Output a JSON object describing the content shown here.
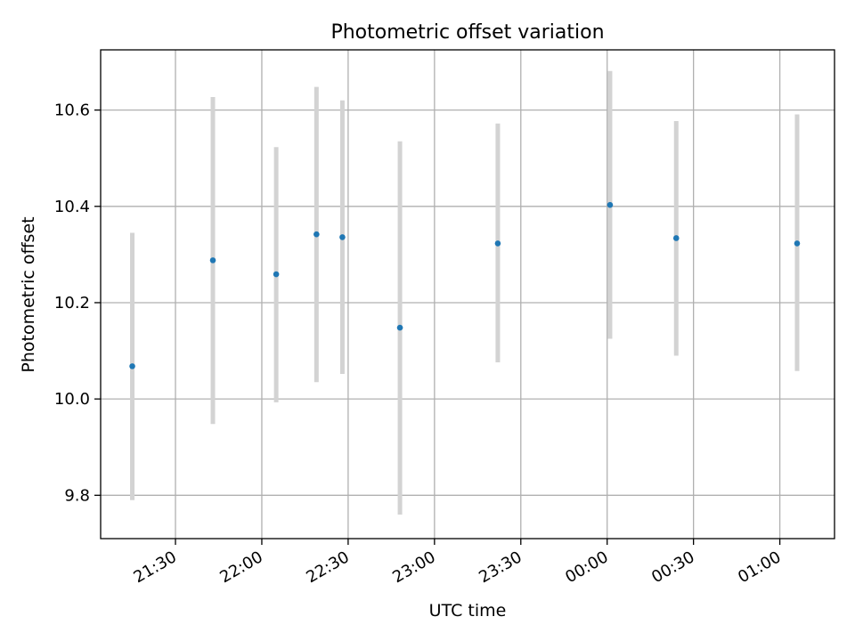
{
  "chart_data": {
    "type": "scatter",
    "title": "Photometric offset variation",
    "xlabel": "UTC time",
    "ylabel": "Photometric offset",
    "x_axis_kind": "time",
    "xlim": [
      "21:04",
      "01:19"
    ],
    "ylim": [
      9.71,
      10.725
    ],
    "grid": true,
    "x_ticks": [
      "21:30",
      "22:00",
      "22:30",
      "23:00",
      "23:30",
      "00:00",
      "00:30",
      "01:00"
    ],
    "y_ticks": [
      "9.8",
      "10.0",
      "10.2",
      "10.4",
      "10.6"
    ],
    "y_tick_values": [
      9.8,
      10.0,
      10.2,
      10.4,
      10.6
    ],
    "series": [
      {
        "marker_color": "#1f77b4",
        "errorbar_color": "#d3d3d3",
        "points": [
          {
            "x": "21:15",
            "y": 10.068,
            "y_low": 9.79,
            "y_high": 10.345
          },
          {
            "x": "21:43",
            "y": 10.288,
            "y_low": 9.948,
            "y_high": 10.627
          },
          {
            "x": "22:05",
            "y": 10.259,
            "y_low": 9.993,
            "y_high": 10.523
          },
          {
            "x": "22:19",
            "y": 10.342,
            "y_low": 10.035,
            "y_high": 10.648
          },
          {
            "x": "22:28",
            "y": 10.336,
            "y_low": 10.052,
            "y_high": 10.62
          },
          {
            "x": "22:48",
            "y": 10.148,
            "y_low": 9.76,
            "y_high": 10.535
          },
          {
            "x": "23:22",
            "y": 10.323,
            "y_low": 10.076,
            "y_high": 10.572
          },
          {
            "x": "00:01",
            "y": 10.403,
            "y_low": 10.125,
            "y_high": 10.681
          },
          {
            "x": "00:24",
            "y": 10.334,
            "y_low": 10.09,
            "y_high": 10.577
          },
          {
            "x": "01:06",
            "y": 10.323,
            "y_low": 10.058,
            "y_high": 10.591
          }
        ]
      }
    ]
  }
}
